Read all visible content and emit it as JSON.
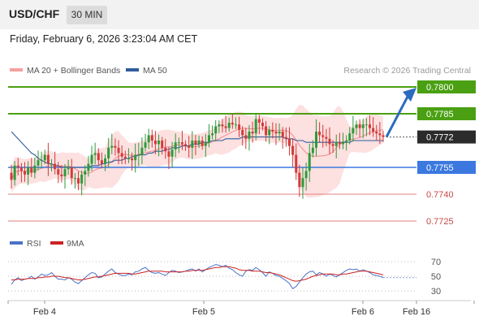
{
  "header": {
    "pair": "USD/CHF",
    "timeframe": "30 MIN"
  },
  "datetime": "Friday, February 6, 2026 3:23:04 AM CET",
  "legend": {
    "bollinger": "MA 20 + Bollinger Bands",
    "ma50": "MA 50",
    "rsi": "RSI",
    "rsi_ma": "9MA"
  },
  "copyright": "Research © 2026 Trading Central",
  "colors": {
    "resistance": "#4aa012",
    "support": "#3b78e0",
    "lower": "#e08080",
    "current": "#2b2b2b",
    "up_candle": "#2e9a3a",
    "down_candle": "#d23a3a",
    "ma50": "#2f5c9a",
    "band_fill": "#fde0e0",
    "ma20": "#f08a8a",
    "arrow": "#2b6bbf",
    "rsi": "#4a73c8",
    "rsi_ma": "#cc2222"
  },
  "chart_data": [
    {
      "type": "candlestick",
      "x_ticks": [
        "Feb 4",
        "Feb 5",
        "Feb 6",
        "Feb 16"
      ],
      "ylim": [
        0.7717,
        0.7808
      ],
      "levels": [
        {
          "value": 0.78,
          "label": "0.7800",
          "kind": "resistance"
        },
        {
          "value": 0.7785,
          "label": "0.7785",
          "kind": "resistance"
        },
        {
          "value": 0.7772,
          "label": "0.7772",
          "kind": "current"
        },
        {
          "value": 0.7755,
          "label": "0.7755",
          "kind": "support"
        },
        {
          "value": 0.774,
          "label": "0.7740",
          "kind": "lower"
        },
        {
          "value": 0.7725,
          "label": "0.7725",
          "kind": "lower"
        }
      ],
      "close": [
        0.7748,
        0.7756,
        0.7755,
        0.7753,
        0.7751,
        0.7755,
        0.7752,
        0.7756,
        0.7759,
        0.7759,
        0.7762,
        0.7757,
        0.7757,
        0.7754,
        0.7751,
        0.775,
        0.7754,
        0.7755,
        0.7749,
        0.7749,
        0.7746,
        0.7751,
        0.7753,
        0.7757,
        0.7762,
        0.7763,
        0.7759,
        0.7757,
        0.776,
        0.7766,
        0.7767,
        0.7766,
        0.7763,
        0.7761,
        0.776,
        0.776,
        0.7759,
        0.7762,
        0.7762,
        0.7766,
        0.7769,
        0.7773,
        0.777,
        0.7768,
        0.777,
        0.7766,
        0.7764,
        0.7761,
        0.7765,
        0.7769,
        0.7769,
        0.7768,
        0.7767,
        0.7766,
        0.777,
        0.7768,
        0.777,
        0.7767,
        0.7769,
        0.7773,
        0.7774,
        0.7778,
        0.7779,
        0.7778,
        0.7777,
        0.778,
        0.7779,
        0.7779,
        0.7776,
        0.7773,
        0.7771,
        0.7775,
        0.7774,
        0.7782,
        0.778,
        0.7778,
        0.7773,
        0.7776,
        0.7775,
        0.7774,
        0.7775,
        0.7772,
        0.7771,
        0.7767,
        0.7762,
        0.7752,
        0.7744,
        0.7749,
        0.7753,
        0.7763,
        0.7766,
        0.7775,
        0.7773,
        0.7772,
        0.7771,
        0.7768,
        0.7767,
        0.7769,
        0.7768,
        0.7769,
        0.777,
        0.7774,
        0.7777,
        0.7779,
        0.7777,
        0.7779,
        0.7779,
        0.7777,
        0.7775,
        0.7774,
        0.7773,
        0.7772
      ],
      "ma50": [
        0.7775,
        0.7773,
        0.7771,
        0.7769,
        0.7767,
        0.7765,
        0.7763,
        0.7762,
        0.776,
        0.7759,
        0.7758,
        0.7757,
        0.7757,
        0.7756,
        0.7756,
        0.7755,
        0.7755,
        0.7755,
        0.7755,
        0.7755,
        0.7755,
        0.7755,
        0.7755,
        0.7755,
        0.7756,
        0.7756,
        0.7756,
        0.7757,
        0.7757,
        0.7758,
        0.7758,
        0.7759,
        0.7759,
        0.7759,
        0.776,
        0.776,
        0.7761,
        0.7761,
        0.7762,
        0.7762,
        0.7762,
        0.7763,
        0.7763,
        0.7764,
        0.7764,
        0.7764,
        0.7765,
        0.7765,
        0.7766,
        0.7766,
        0.7766,
        0.7767,
        0.7767,
        0.7767,
        0.7768,
        0.7768,
        0.7768,
        0.7769,
        0.7769,
        0.7769,
        0.777,
        0.777,
        0.777,
        0.777,
        0.7771,
        0.7771,
        0.7771,
        0.7771,
        0.7771,
        0.7772,
        0.7772,
        0.7772,
        0.7772,
        0.7772,
        0.7772,
        0.7772,
        0.7772,
        0.7772,
        0.7772,
        0.7772,
        0.7772,
        0.7772,
        0.7771,
        0.7771,
        0.7771,
        0.777,
        0.777,
        0.777,
        0.7769,
        0.7769,
        0.7769,
        0.7769,
        0.7769,
        0.7769,
        0.7769,
        0.7769,
        0.7769,
        0.7769,
        0.7769,
        0.7769,
        0.7769,
        0.7769,
        0.777,
        0.777,
        0.777,
        0.777,
        0.777,
        0.777,
        0.777,
        0.777,
        0.777,
        0.777
      ]
    },
    {
      "type": "line",
      "title": "RSI",
      "y_ticks": [
        70,
        50,
        30
      ],
      "ylim": [
        20,
        80
      ],
      "series": [
        {
          "name": "RSI",
          "values": [
            39,
            45,
            48,
            44,
            46,
            47,
            50,
            46,
            49,
            53,
            51,
            52,
            55,
            50,
            46,
            46,
            45,
            48,
            46,
            42,
            40,
            44,
            48,
            52,
            55,
            54,
            48,
            49,
            53,
            57,
            60,
            55,
            53,
            51,
            51,
            53,
            52,
            56,
            57,
            60,
            62,
            58,
            55,
            54,
            55,
            53,
            51,
            55,
            58,
            57,
            55,
            56,
            57,
            59,
            60,
            57,
            60,
            56,
            59,
            62,
            64,
            66,
            65,
            63,
            65,
            61,
            59,
            55,
            52,
            50,
            57,
            59,
            58,
            62,
            59,
            55,
            50,
            56,
            54,
            51,
            50,
            47,
            44,
            40,
            33,
            36,
            42,
            48,
            53,
            56,
            57,
            52,
            55,
            53,
            50,
            53,
            51,
            49,
            52,
            55,
            58,
            60,
            59,
            60,
            57,
            59,
            57,
            55,
            52,
            51,
            50,
            48
          ]
        },
        {
          "name": "9MA",
          "values": [
            45,
            45,
            46,
            46,
            46,
            47,
            47,
            47,
            48,
            48,
            49,
            49,
            50,
            50,
            50,
            49,
            48,
            48,
            47,
            46,
            45,
            45,
            46,
            47,
            48,
            49,
            49,
            50,
            51,
            52,
            53,
            54,
            54,
            54,
            54,
            54,
            53,
            53,
            54,
            55,
            56,
            57,
            57,
            57,
            57,
            57,
            56,
            56,
            56,
            56,
            56,
            56,
            57,
            57,
            58,
            58,
            58,
            58,
            59,
            60,
            61,
            62,
            62,
            63,
            63,
            63,
            62,
            61,
            59,
            58,
            58,
            58,
            57,
            57,
            57,
            56,
            55,
            55,
            54,
            53,
            52,
            50,
            48,
            46,
            44,
            43,
            44,
            45,
            46,
            48,
            50,
            51,
            52,
            53,
            53,
            53,
            53,
            52,
            52,
            53,
            53,
            54,
            55,
            56,
            57,
            57,
            57,
            56,
            55,
            54,
            53,
            52
          ]
        }
      ]
    }
  ]
}
